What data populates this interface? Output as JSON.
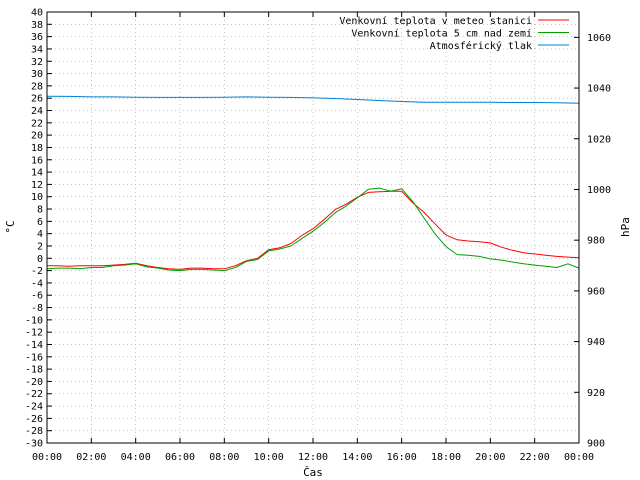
{
  "chart_data": {
    "type": "line",
    "xlabel": "Čas",
    "ylabel": "°C",
    "y2label": "hPa",
    "grid": true,
    "legend_position": "top-right",
    "x_ticks": [
      "00:00",
      "02:00",
      "04:00",
      "06:00",
      "08:00",
      "10:00",
      "12:00",
      "14:00",
      "16:00",
      "18:00",
      "20:00",
      "22:00",
      "00:00"
    ],
    "xlim": [
      0,
      24
    ],
    "ylim": [
      -30,
      40
    ],
    "y_ticks": [
      -30,
      -28,
      -26,
      -24,
      -22,
      -20,
      -18,
      -16,
      -14,
      -12,
      -10,
      -8,
      -6,
      -4,
      -2,
      0,
      2,
      4,
      6,
      8,
      10,
      12,
      14,
      16,
      18,
      20,
      22,
      24,
      26,
      28,
      30,
      32,
      34,
      36,
      38,
      40
    ],
    "y2lim": [
      900,
      1070
    ],
    "y2_ticks": [
      900,
      920,
      940,
      960,
      980,
      1000,
      1020,
      1040,
      1060
    ],
    "series": [
      {
        "name": "Venkovní teplota v meteo stanici",
        "color": "#ff0000",
        "axis": "left",
        "x": [
          0,
          0.5,
          1,
          1.5,
          2,
          2.5,
          3,
          3.5,
          4,
          4.5,
          5,
          5.5,
          6,
          6.5,
          7,
          7.5,
          8,
          8.5,
          9,
          9.5,
          10,
          10.5,
          11,
          11.5,
          12,
          12.5,
          13,
          13.5,
          14,
          14.5,
          15,
          15.5,
          16,
          16.5,
          17,
          17.5,
          18,
          18.5,
          19,
          19.5,
          20,
          20.5,
          21,
          21.5,
          22,
          22.5,
          23,
          23.5,
          24
        ],
        "y": [
          -1.2,
          -1.2,
          -1.3,
          -1.2,
          -1.2,
          -1.2,
          -1.1,
          -1.0,
          -0.8,
          -1.2,
          -1.5,
          -1.7,
          -1.8,
          -1.6,
          -1.6,
          -1.7,
          -1.7,
          -1.2,
          -0.4,
          0.0,
          1.4,
          1.7,
          2.4,
          3.7,
          4.8,
          6.3,
          7.9,
          8.8,
          9.9,
          10.7,
          10.8,
          10.9,
          10.9,
          9.0,
          7.5,
          5.6,
          3.8,
          3.0,
          2.8,
          2.7,
          2.5,
          1.8,
          1.3,
          0.9,
          0.7,
          0.5,
          0.3,
          0.2,
          0.1
        ]
      },
      {
        "name": "Venkovní teplota 5 cm nad zemí",
        "color": "#00a000",
        "axis": "left",
        "x": [
          0,
          0.5,
          1,
          1.5,
          2,
          2.5,
          3,
          3.5,
          4,
          4.5,
          5,
          5.5,
          6,
          6.5,
          7,
          7.5,
          8,
          8.5,
          9,
          9.5,
          10,
          10.5,
          11,
          11.5,
          12,
          12.5,
          13,
          13.5,
          14,
          14.5,
          15,
          15.5,
          16,
          16.5,
          17,
          17.5,
          18,
          18.5,
          19,
          19.5,
          20,
          20.5,
          21,
          21.5,
          22,
          22.5,
          23,
          23.5,
          24
        ],
        "y": [
          -1.7,
          -1.6,
          -1.6,
          -1.7,
          -1.5,
          -1.5,
          -1.2,
          -1.1,
          -0.9,
          -1.4,
          -1.6,
          -1.9,
          -2.0,
          -1.8,
          -1.8,
          -1.9,
          -2.0,
          -1.5,
          -0.5,
          -0.2,
          1.2,
          1.5,
          2.0,
          3.2,
          4.4,
          5.8,
          7.4,
          8.5,
          9.8,
          11.2,
          11.4,
          10.9,
          11.3,
          9.2,
          6.6,
          4.0,
          1.9,
          0.6,
          0.5,
          0.3,
          -0.1,
          -0.3,
          -0.6,
          -0.9,
          -1.1,
          -1.3,
          -1.5,
          -0.9,
          -1.6
        ]
      },
      {
        "name": "Atmosférický tlak",
        "color": "#0080d0",
        "axis": "right",
        "x": [
          0,
          1,
          2,
          3,
          4,
          5,
          6,
          7,
          8,
          9,
          10,
          11,
          12,
          13,
          14,
          15,
          16,
          17,
          18,
          19,
          20,
          21,
          22,
          23,
          24
        ],
        "y": [
          1036.8,
          1036.7,
          1036.5,
          1036.5,
          1036.4,
          1036.3,
          1036.3,
          1036.3,
          1036.4,
          1036.5,
          1036.4,
          1036.3,
          1036.1,
          1035.9,
          1035.5,
          1035.1,
          1034.7,
          1034.4,
          1034.4,
          1034.4,
          1034.4,
          1034.3,
          1034.3,
          1034.2,
          1034.0
        ]
      }
    ]
  }
}
